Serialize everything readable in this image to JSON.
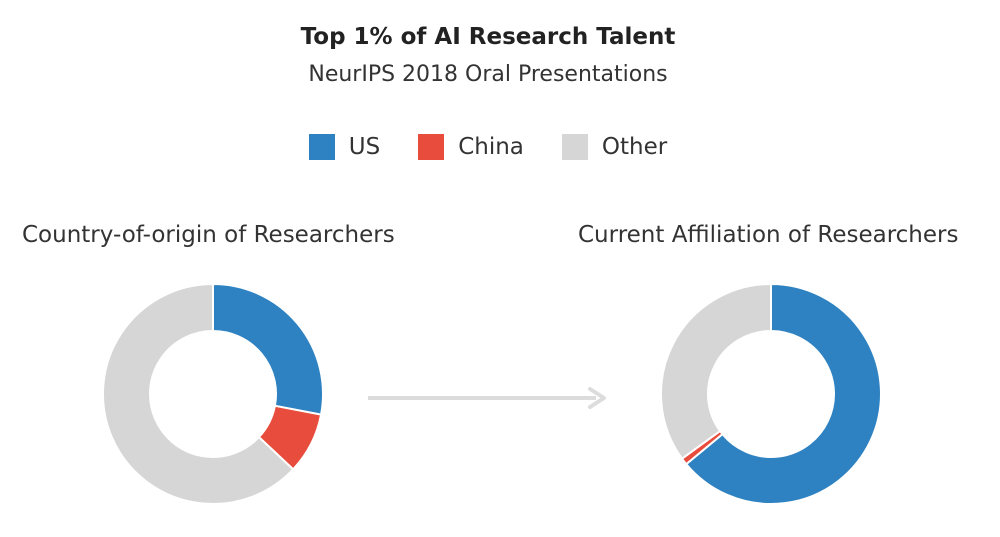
{
  "title": "Top 1% of AI Research Talent",
  "subtitle": "NeurIPS 2018 Oral Presentations",
  "legend": [
    {
      "label": "US",
      "color": "#2e82c1"
    },
    {
      "label": "China",
      "color": "#e74c3c"
    },
    {
      "label": "Other",
      "color": "#d6d6d6"
    }
  ],
  "chart_data": [
    {
      "type": "pie",
      "title": "Country-of-origin of Researchers",
      "categories": [
        "US",
        "China",
        "Other"
      ],
      "values": [
        28,
        9,
        63
      ],
      "colors": [
        "#2e82c1",
        "#e74c3c",
        "#d6d6d6"
      ],
      "donut": true
    },
    {
      "type": "pie",
      "title": "Current Affiliation of Researchers",
      "categories": [
        "US",
        "China",
        "Other"
      ],
      "values": [
        64,
        1,
        35
      ],
      "colors": [
        "#2e82c1",
        "#e74c3c",
        "#d6d6d6"
      ],
      "donut": true
    }
  ]
}
